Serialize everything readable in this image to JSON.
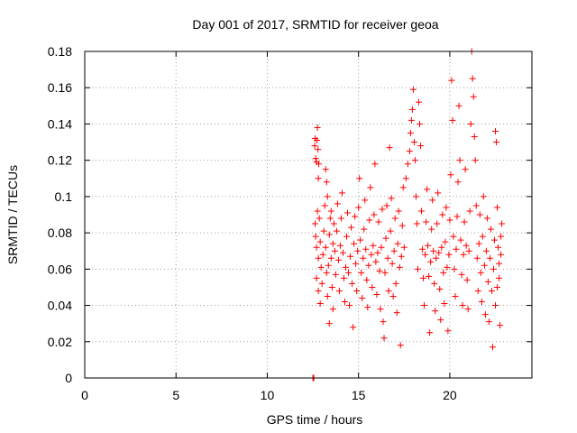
{
  "chart_data": {
    "type": "scatter",
    "title": "Day 001 of 2017, SRMTID for receiver geoa",
    "xlabel": "GPS time / hours",
    "ylabel": "SRMTID / TECUs",
    "xlim": [
      0,
      24.5
    ],
    "ylim": [
      0,
      0.18
    ],
    "x_ticks": [
      "0",
      "5",
      "10",
      "15",
      "20"
    ],
    "x_tick_values": [
      0,
      5,
      10,
      15,
      20
    ],
    "y_ticks": [
      "0",
      "0.02",
      "0.04",
      "0.06",
      "0.08",
      "0.1",
      "0.12",
      "0.14",
      "0.16",
      "0.18"
    ],
    "y_tick_values": [
      0,
      0.02,
      0.04,
      0.06,
      0.08,
      0.1,
      0.12,
      0.14,
      0.16,
      0.18
    ],
    "grid": true,
    "marker": "+",
    "marker_color": "#ff0000",
    "series": [
      {
        "points": [
          [
            12.5,
            0.0
          ],
          [
            12.52,
            0.0
          ],
          [
            12.55,
            0.0
          ],
          [
            12.6,
            0.128
          ],
          [
            12.62,
            0.132
          ],
          [
            12.65,
            0.121
          ],
          [
            12.7,
            0.119
          ],
          [
            12.72,
            0.131
          ],
          [
            12.75,
            0.138
          ],
          [
            12.78,
            0.126
          ],
          [
            12.8,
            0.11
          ],
          [
            12.82,
            0.118
          ],
          [
            12.62,
            0.085
          ],
          [
            12.65,
            0.078
          ],
          [
            12.7,
            0.072
          ],
          [
            12.75,
            0.092
          ],
          [
            12.8,
            0.066
          ],
          [
            12.85,
            0.088
          ],
          [
            12.9,
            0.075
          ],
          [
            12.95,
            0.061
          ],
          [
            12.7,
            0.055
          ],
          [
            12.8,
            0.048
          ],
          [
            12.9,
            0.041
          ],
          [
            13.0,
            0.052
          ],
          [
            13.05,
            0.068
          ],
          [
            13.1,
            0.081
          ],
          [
            13.15,
            0.095
          ],
          [
            13.2,
            0.072
          ],
          [
            13.25,
            0.058
          ],
          [
            13.3,
            0.045
          ],
          [
            13.35,
            0.062
          ],
          [
            13.4,
            0.079
          ],
          [
            13.45,
            0.088
          ],
          [
            13.5,
            0.066
          ],
          [
            13.55,
            0.05
          ],
          [
            13.6,
            0.038
          ],
          [
            13.2,
            0.115
          ],
          [
            13.25,
            0.108
          ],
          [
            13.3,
            0.1
          ],
          [
            13.4,
            0.03
          ],
          [
            13.5,
            0.092
          ],
          [
            13.6,
            0.074
          ],
          [
            13.65,
            0.085
          ],
          [
            13.7,
            0.07
          ],
          [
            13.75,
            0.057
          ],
          [
            13.8,
            0.081
          ],
          [
            13.85,
            0.096
          ],
          [
            13.9,
            0.065
          ],
          [
            13.95,
            0.048
          ],
          [
            14.0,
            0.073
          ],
          [
            14.05,
            0.088
          ],
          [
            14.1,
            0.102
          ],
          [
            14.15,
            0.069
          ],
          [
            14.2,
            0.055
          ],
          [
            14.25,
            0.042
          ],
          [
            14.3,
            0.061
          ],
          [
            14.35,
            0.078
          ],
          [
            14.4,
            0.091
          ],
          [
            14.45,
            0.058
          ],
          [
            14.5,
            0.04
          ],
          [
            14.55,
            0.067
          ],
          [
            14.6,
            0.083
          ],
          [
            14.65,
            0.052
          ],
          [
            14.7,
            0.028
          ],
          [
            14.75,
            0.074
          ],
          [
            14.8,
            0.089
          ],
          [
            14.85,
            0.063
          ],
          [
            14.9,
            0.048
          ],
          [
            14.95,
            0.07
          ],
          [
            15.0,
            0.094
          ],
          [
            15.05,
            0.11
          ],
          [
            15.1,
            0.076
          ],
          [
            15.15,
            0.058
          ],
          [
            15.2,
            0.044
          ],
          [
            15.25,
            0.066
          ],
          [
            15.3,
            0.082
          ],
          [
            15.35,
            0.098
          ],
          [
            15.4,
            0.071
          ],
          [
            15.45,
            0.054
          ],
          [
            15.5,
            0.039
          ],
          [
            15.55,
            0.062
          ],
          [
            15.6,
            0.087
          ],
          [
            15.65,
            0.105
          ],
          [
            15.7,
            0.068
          ],
          [
            15.75,
            0.05
          ],
          [
            15.8,
            0.073
          ],
          [
            15.85,
            0.09
          ],
          [
            15.9,
            0.118
          ],
          [
            15.95,
            0.064
          ],
          [
            16.0,
            0.046
          ],
          [
            16.05,
            0.069
          ],
          [
            16.1,
            0.086
          ],
          [
            16.15,
            0.059
          ],
          [
            16.2,
            0.038
          ],
          [
            16.25,
            0.072
          ],
          [
            16.3,
            0.093
          ],
          [
            16.35,
            0.031
          ],
          [
            16.4,
            0.022
          ],
          [
            16.45,
            0.058
          ],
          [
            16.5,
            0.077
          ],
          [
            16.55,
            0.095
          ],
          [
            16.6,
            0.066
          ],
          [
            16.65,
            0.048
          ],
          [
            16.7,
            0.127
          ],
          [
            16.75,
            0.081
          ],
          [
            16.8,
            0.099
          ],
          [
            16.85,
            0.063
          ],
          [
            16.9,
            0.045
          ],
          [
            16.95,
            0.07
          ],
          [
            17.0,
            0.088
          ],
          [
            17.05,
            0.052
          ],
          [
            17.1,
            0.036
          ],
          [
            17.15,
            0.074
          ],
          [
            17.2,
            0.092
          ],
          [
            17.25,
            0.061
          ],
          [
            17.3,
            0.018
          ],
          [
            17.35,
            0.067
          ],
          [
            17.4,
            0.084
          ],
          [
            17.45,
            0.105
          ],
          [
            17.5,
            0.072
          ],
          [
            17.6,
            0.11
          ],
          [
            17.7,
            0.118
          ],
          [
            17.8,
            0.125
          ],
          [
            17.85,
            0.135
          ],
          [
            17.9,
            0.142
          ],
          [
            17.95,
            0.148
          ],
          [
            18.0,
            0.159
          ],
          [
            18.05,
            0.13
          ],
          [
            18.1,
            0.12
          ],
          [
            18.15,
            0.1
          ],
          [
            18.2,
            0.085
          ],
          [
            18.25,
            0.06
          ],
          [
            18.3,
            0.152
          ],
          [
            18.35,
            0.14
          ],
          [
            18.4,
            0.128
          ],
          [
            18.45,
            0.092
          ],
          [
            18.5,
            0.071
          ],
          [
            18.55,
            0.055
          ],
          [
            18.6,
            0.04
          ],
          [
            18.65,
            0.068
          ],
          [
            18.7,
            0.086
          ],
          [
            18.75,
            0.104
          ],
          [
            18.8,
            0.073
          ],
          [
            18.85,
            0.056
          ],
          [
            18.9,
            0.025
          ],
          [
            18.95,
            0.064
          ],
          [
            19.0,
            0.082
          ],
          [
            19.05,
            0.098
          ],
          [
            19.1,
            0.07
          ],
          [
            19.15,
            0.052
          ],
          [
            19.2,
            0.037
          ],
          [
            19.25,
            0.066
          ],
          [
            19.3,
            0.085
          ],
          [
            19.35,
            0.102
          ],
          [
            19.4,
            0.069
          ],
          [
            19.45,
            0.049
          ],
          [
            19.5,
            0.032
          ],
          [
            19.55,
            0.072
          ],
          [
            19.6,
            0.09
          ],
          [
            19.65,
            0.058
          ],
          [
            19.7,
            0.041
          ],
          [
            19.75,
            0.075
          ],
          [
            19.8,
            0.094
          ],
          [
            19.85,
            0.061
          ],
          [
            19.9,
            0.026
          ],
          [
            19.95,
            0.068
          ],
          [
            20.0,
            0.087
          ],
          [
            20.05,
            0.112
          ],
          [
            20.1,
            0.164
          ],
          [
            20.15,
            0.142
          ],
          [
            20.2,
            0.078
          ],
          [
            20.25,
            0.06
          ],
          [
            20.3,
            0.045
          ],
          [
            20.35,
            0.071
          ],
          [
            20.4,
            0.089
          ],
          [
            20.45,
            0.108
          ],
          [
            20.5,
            0.15
          ],
          [
            20.55,
            0.12
          ],
          [
            20.6,
            0.076
          ],
          [
            20.65,
            0.057
          ],
          [
            20.7,
            0.04
          ],
          [
            20.75,
            0.068
          ],
          [
            20.8,
            0.086
          ],
          [
            20.85,
            0.115
          ],
          [
            20.9,
            0.073
          ],
          [
            20.95,
            0.054
          ],
          [
            21.0,
            0.038
          ],
          [
            21.05,
            0.07
          ],
          [
            21.1,
            0.092
          ],
          [
            21.15,
            0.14
          ],
          [
            21.2,
            0.18
          ],
          [
            21.25,
            0.165
          ],
          [
            21.3,
            0.155
          ],
          [
            21.35,
            0.133
          ],
          [
            21.4,
            0.12
          ],
          [
            21.45,
            0.095
          ],
          [
            21.5,
            0.066
          ],
          [
            21.55,
            0.048
          ],
          [
            21.6,
            0.074
          ],
          [
            21.65,
            0.09
          ],
          [
            21.7,
            0.058
          ],
          [
            21.75,
            0.042
          ],
          [
            21.8,
            0.078
          ],
          [
            21.85,
            0.1
          ],
          [
            21.9,
            0.062
          ],
          [
            21.95,
            0.035
          ],
          [
            22.0,
            0.07
          ],
          [
            22.05,
            0.088
          ],
          [
            22.1,
            0.053
          ],
          [
            22.15,
            0.031
          ],
          [
            22.2,
            0.066
          ],
          [
            22.25,
            0.082
          ],
          [
            22.3,
            0.048
          ],
          [
            22.35,
            0.017
          ],
          [
            22.4,
            0.06
          ],
          [
            22.45,
            0.076
          ],
          [
            22.5,
            0.136
          ],
          [
            22.55,
            0.13
          ],
          [
            22.6,
            0.094
          ],
          [
            22.65,
            0.072
          ],
          [
            22.7,
            0.055
          ],
          [
            22.75,
            0.029
          ],
          [
            22.8,
            0.068
          ],
          [
            22.85,
            0.085
          ],
          [
            22.5,
            0.04
          ],
          [
            22.6,
            0.05
          ],
          [
            22.7,
            0.063
          ],
          [
            22.8,
            0.078
          ]
        ]
      }
    ]
  }
}
